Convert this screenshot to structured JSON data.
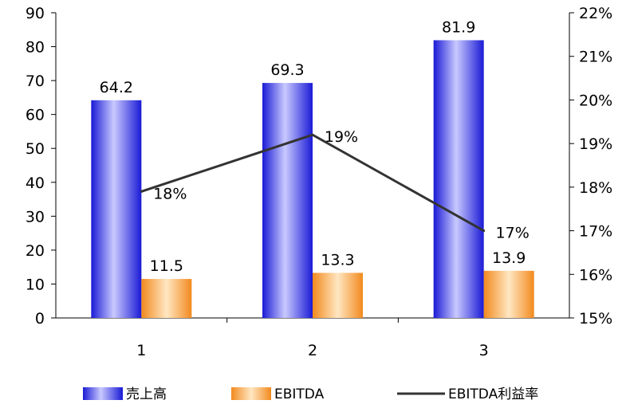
{
  "chart_data": {
    "type": "bar",
    "categories": [
      "1",
      "2",
      "3"
    ],
    "series": [
      {
        "name": "売上高",
        "kind": "bar",
        "axis": "left",
        "values": [
          64.2,
          69.3,
          81.9
        ],
        "labels": [
          "64.2",
          "69.3",
          "81.9"
        ],
        "color": "#3a3ae8"
      },
      {
        "name": "EBITDA",
        "kind": "bar",
        "axis": "left",
        "values": [
          11.5,
          13.3,
          13.9
        ],
        "labels": [
          "11.5",
          "13.3",
          "13.9"
        ],
        "color": "#f79a3c"
      },
      {
        "name": "EBITDA利益率",
        "kind": "line",
        "axis": "right",
        "values": [
          0.179,
          0.192,
          0.17
        ],
        "labels": [
          "18%",
          "19%",
          "17%"
        ],
        "color": "#333333"
      }
    ],
    "y_left": {
      "min": 0,
      "max": 90,
      "ticks": [
        "0",
        "10",
        "20",
        "30",
        "40",
        "50",
        "60",
        "70",
        "80",
        "90"
      ]
    },
    "y_right": {
      "min": 0.15,
      "max": 0.22,
      "ticks": [
        "15%",
        "16%",
        "17%",
        "18%",
        "19%",
        "20%",
        "21%",
        "22%"
      ]
    },
    "legend_position": "bottom",
    "grid": false
  }
}
